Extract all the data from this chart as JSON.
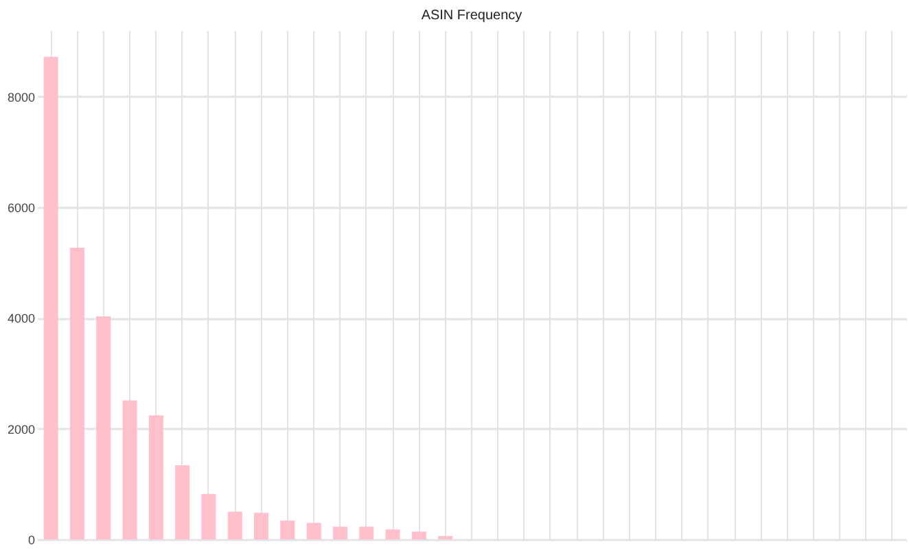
{
  "chart_data": {
    "type": "bar",
    "title": "ASIN Frequency",
    "categories": [
      null,
      null,
      null,
      null,
      null,
      null,
      null,
      null,
      null,
      null,
      null,
      null,
      null,
      null,
      null,
      null,
      null,
      null,
      null,
      null,
      null,
      null,
      null,
      null,
      null,
      null,
      null,
      null,
      null,
      null,
      null,
      null,
      null
    ],
    "values": [
      8720,
      5270,
      4030,
      2510,
      2240,
      1340,
      820,
      500,
      480,
      340,
      300,
      230,
      230,
      180,
      140,
      60,
      0,
      0,
      0,
      0,
      0,
      0,
      0,
      0,
      0,
      0,
      0,
      0,
      0,
      0,
      0,
      0,
      0
    ],
    "color": "#ffc0cb",
    "ylim": [
      0,
      9200
    ],
    "yticks": [
      0,
      2000,
      4000,
      6000,
      8000
    ],
    "grid": true,
    "tick_labels": "y"
  }
}
